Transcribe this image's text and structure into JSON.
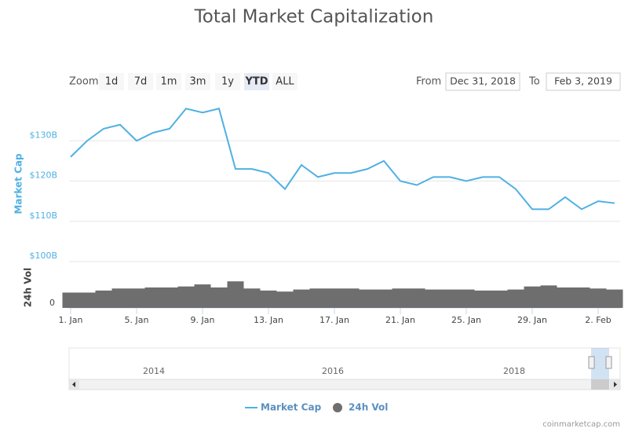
{
  "chart_data": {
    "type": "line",
    "title": "Total Market Capitalization",
    "zoom_label": "Zoom",
    "buttons": [
      "1d",
      "7d",
      "1m",
      "3m",
      "1y",
      "YTD",
      "ALL"
    ],
    "selected_button": 5,
    "from_label": "From",
    "from": "Dec 31, 2018",
    "to_label": "To",
    "to": "Feb 3, 2019",
    "y_label": "Market Cap",
    "y2_label": "24h Vol",
    "categories": [
      "1. Jan",
      null,
      null,
      null,
      "5. Jan",
      null,
      null,
      null,
      "9. Jan",
      null,
      null,
      null,
      "13. Jan",
      null,
      null,
      null,
      "17. Jan",
      null,
      null,
      null,
      "21. Jan",
      null,
      null,
      null,
      "25. Jan",
      null,
      null,
      null,
      "29. Jan",
      null,
      null,
      null,
      "2. Feb",
      null
    ],
    "series": [
      {
        "name": "Market Cap",
        "color": "#4fb0e3",
        "values": [
          126,
          130,
          133,
          134,
          130,
          132,
          133,
          138,
          137,
          138,
          123,
          123,
          122,
          118,
          124,
          121,
          122,
          122,
          123,
          125,
          120,
          119,
          121,
          121,
          120,
          121,
          121,
          118,
          113,
          113,
          116,
          113,
          115,
          114.5
        ]
      },
      {
        "name": "24h Vol",
        "color": "#6e6e6e",
        "axis": "y2",
        "values": [
          15,
          15,
          17,
          19,
          19,
          20,
          20,
          21,
          23,
          20,
          26,
          19,
          17,
          16,
          18,
          19,
          19,
          19,
          18,
          18,
          19,
          19,
          18,
          18,
          18,
          17,
          17,
          18,
          21,
          22,
          20,
          20,
          19,
          18
        ]
      }
    ],
    "ylim": [
      100,
      140
    ],
    "yticks": [
      {
        "value": 100,
        "label": "$100B"
      },
      {
        "value": 110,
        "label": "$110B"
      },
      {
        "value": 120,
        "label": "$120B"
      },
      {
        "value": 130,
        "label": "$130B"
      }
    ],
    "y2lim": [
      0,
      40
    ],
    "y2ticks": [
      0
    ],
    "grid": true,
    "navigator_labels": [
      "2014",
      "2016",
      "2018"
    ],
    "credits": "coinmarketcap.com"
  }
}
